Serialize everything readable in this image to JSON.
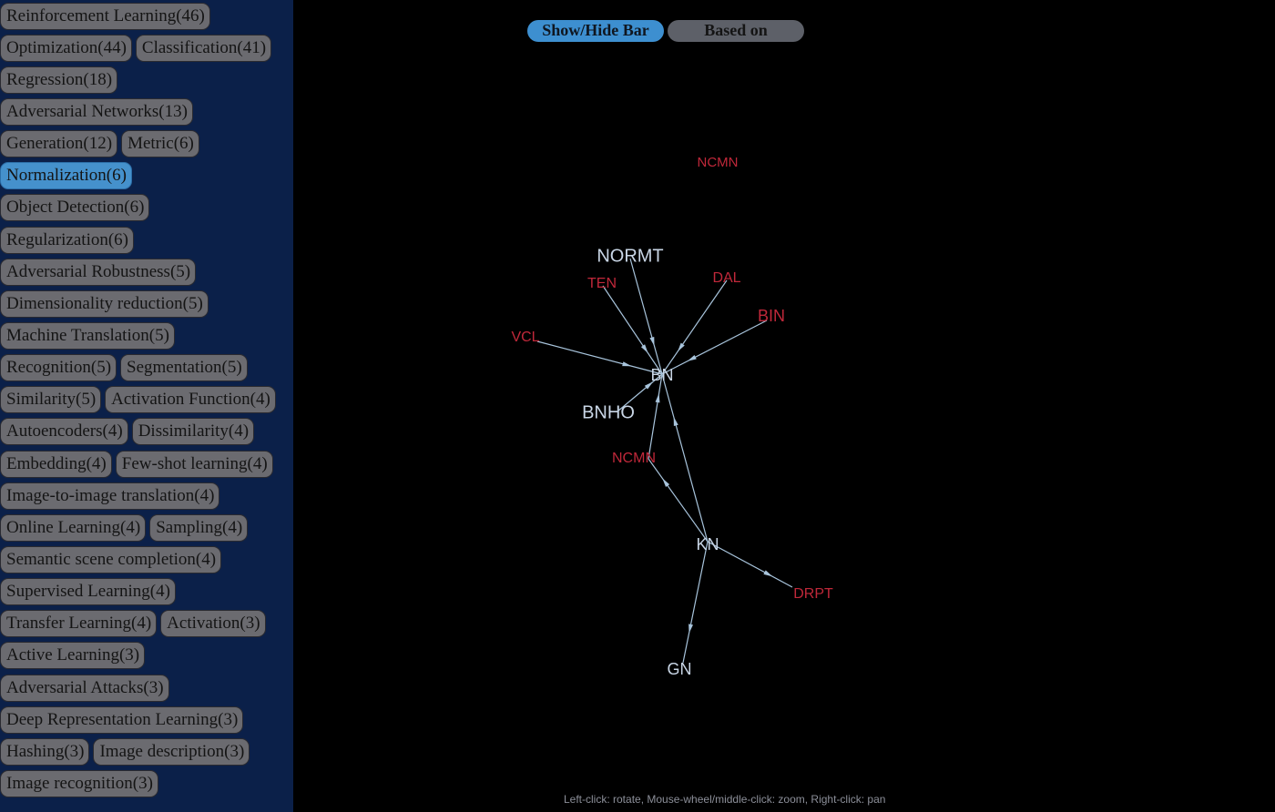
{
  "sidebar": {
    "rows": [
      [
        {
          "label": "Reinforcement Learning(46)"
        }
      ],
      [
        {
          "label": "Optimization(44)"
        },
        {
          "label": "Classification(41)"
        }
      ],
      [
        {
          "label": "Regression(18)"
        }
      ],
      [
        {
          "label": "Adversarial Networks(13)"
        }
      ],
      [
        {
          "label": "Generation(12)"
        },
        {
          "label": "Metric(6)"
        }
      ],
      [
        {
          "label": "Normalization(6)",
          "selected": true
        }
      ],
      [
        {
          "label": "Object Detection(6)"
        }
      ],
      [
        {
          "label": "Regularization(6)"
        }
      ],
      [
        {
          "label": "Adversarial Robustness(5)"
        }
      ],
      [
        {
          "label": "Dimensionality reduction(5)"
        }
      ],
      [
        {
          "label": "Machine Translation(5)"
        }
      ],
      [
        {
          "label": "Recognition(5)"
        },
        {
          "label": "Segmentation(5)"
        }
      ],
      [
        {
          "label": "Similarity(5)"
        },
        {
          "label": "Activation Function(4)"
        }
      ],
      [
        {
          "label": "Autoencoders(4)"
        },
        {
          "label": "Dissimilarity(4)"
        }
      ],
      [
        {
          "label": "Embedding(4)"
        },
        {
          "label": "Few-shot learning(4)"
        }
      ],
      [
        {
          "label": "Image-to-image translation(4)"
        }
      ],
      [
        {
          "label": "Online Learning(4)"
        },
        {
          "label": "Sampling(4)"
        }
      ],
      [
        {
          "label": "Semantic scene completion(4)"
        }
      ],
      [
        {
          "label": "Supervised Learning(4)"
        }
      ],
      [
        {
          "label": "Transfer Learning(4)"
        },
        {
          "label": "Activation(3)"
        }
      ],
      [
        {
          "label": "Active Learning(3)"
        }
      ],
      [
        {
          "label": "Adversarial Attacks(3)"
        }
      ],
      [
        {
          "label": "Deep Representation Learning(3)"
        }
      ],
      [
        {
          "label": "Hashing(3)"
        },
        {
          "label": "Image description(3)"
        }
      ],
      [
        {
          "label": "Image recognition(3)"
        }
      ]
    ]
  },
  "toolbar": {
    "toggle_label": "Show/Hide Bar",
    "based_label": "Based on"
  },
  "colors": {
    "sidebar_bg": "#0b2049",
    "tag_bg": "#6b6b70",
    "tag_selected_bg": "#4591cc",
    "node_default": "#c9d6e6",
    "node_highlight": "#c0283a",
    "edge": "#a8c4dc"
  },
  "graph": {
    "nodes": [
      {
        "id": "NCMN_top",
        "label": "NCMN",
        "kind": "highlight"
      },
      {
        "id": "NORMT",
        "label": "NORMT",
        "kind": "default"
      },
      {
        "id": "TEN",
        "label": "TEN",
        "kind": "highlight"
      },
      {
        "id": "DAL",
        "label": "DAL",
        "kind": "highlight"
      },
      {
        "id": "BIN",
        "label": "BIN",
        "kind": "highlight"
      },
      {
        "id": "VCL",
        "label": "VCL",
        "kind": "highlight"
      },
      {
        "id": "BN",
        "label": "BN",
        "kind": "default"
      },
      {
        "id": "BNHO",
        "label": "BNHO",
        "kind": "default"
      },
      {
        "id": "NCMN",
        "label": "NCMN",
        "kind": "highlight"
      },
      {
        "id": "KN",
        "label": "KN",
        "kind": "default"
      },
      {
        "id": "DRPT",
        "label": "DRPT",
        "kind": "highlight"
      },
      {
        "id": "GN",
        "label": "GN",
        "kind": "default"
      }
    ],
    "edges": [
      {
        "from": "NORMT",
        "to": "BN"
      },
      {
        "from": "TEN",
        "to": "BN"
      },
      {
        "from": "DAL",
        "to": "BN"
      },
      {
        "from": "BIN",
        "to": "BN"
      },
      {
        "from": "VCL",
        "to": "BN"
      },
      {
        "from": "BNHO",
        "to": "BN"
      },
      {
        "from": "NCMN",
        "to": "BN"
      },
      {
        "from": "KN",
        "to": "BN"
      },
      {
        "from": "KN",
        "to": "NCMN"
      },
      {
        "from": "KN",
        "to": "DRPT"
      },
      {
        "from": "KN",
        "to": "GN"
      }
    ]
  },
  "footer": {
    "help": "Left-click: rotate, Mouse-wheel/middle-click: zoom, Right-click: pan"
  }
}
